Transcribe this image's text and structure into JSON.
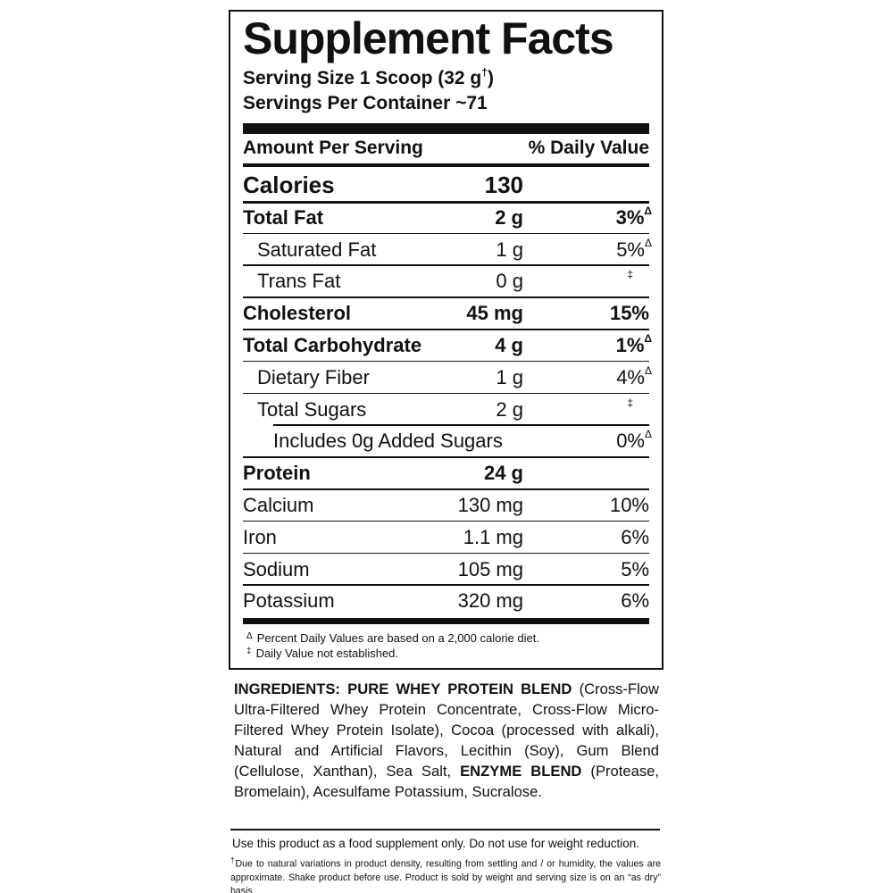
{
  "title": "Supplement Facts",
  "serving_size": {
    "text": "Serving Size 1 Scoop (32 g",
    "mark": "†",
    "end": ")"
  },
  "servings_per_container": "Servings Per Container ~71",
  "header": {
    "amount": "Amount Per Serving",
    "daily_value": "% Daily Value"
  },
  "rows": [
    {
      "name": "Calories",
      "amount": "130",
      "bold": true,
      "indent": 0,
      "large": true
    },
    {
      "name": "Total Fat",
      "amount": "2 g",
      "dv": "3%",
      "dv_mark": "Δ",
      "bold": true,
      "indent": 0
    },
    {
      "name": "Saturated Fat",
      "amount": "1 g",
      "dv": "5%",
      "dv_mark": "Δ",
      "bold": false,
      "indent": 1
    },
    {
      "name": "Trans Fat",
      "amount": "0 g",
      "dv_mark": "‡",
      "bold": false,
      "indent": 1
    },
    {
      "name": "Cholesterol",
      "amount": "45 mg",
      "dv": "15%",
      "bold": true,
      "indent": 0
    },
    {
      "name": "Total Carbohydrate",
      "amount": "4 g",
      "dv": "1%",
      "dv_mark": "Δ",
      "bold": true,
      "indent": 0
    },
    {
      "name": "Dietary Fiber",
      "amount": "1 g",
      "dv": "4%",
      "dv_mark": "Δ",
      "bold": false,
      "indent": 1
    },
    {
      "name": "Total Sugars",
      "amount": "2 g",
      "dv_mark": "‡",
      "bold": false,
      "indent": 1
    },
    {
      "name": "Includes 0g Added Sugars",
      "dv": "0%",
      "dv_mark": "Δ",
      "bold": false,
      "indent": 2
    },
    {
      "name": "Protein",
      "amount": "24 g",
      "bold": true,
      "indent": 0
    },
    {
      "name": "Calcium",
      "amount": "130 mg",
      "dv": "10%",
      "bold": false,
      "indent": 0
    },
    {
      "name": "Iron",
      "amount": "1.1 mg",
      "dv": "6%",
      "bold": false,
      "indent": 0
    },
    {
      "name": "Sodium",
      "amount": "105 mg",
      "dv": "5%",
      "bold": false,
      "indent": 0
    },
    {
      "name": "Potassium",
      "amount": "320 mg",
      "dv": "6%",
      "bold": false,
      "indent": 0
    }
  ],
  "footnotes": [
    {
      "mark": "Δ",
      "text": "Percent Daily Values are based on a 2,000 calorie diet."
    },
    {
      "mark": "‡",
      "text": "Daily Value not established."
    }
  ],
  "ingredients": [
    {
      "text": "INGREDIENTS: PURE WHEY PROTEIN BLEND",
      "bold": true
    },
    {
      "text": " (Cross-Flow Ultra-Filtered Whey Protein Concentrate, Cross-Flow Micro-Filtered Whey Protein Isolate), Cocoa (processed with alkali), Natural and Artificial Flavors, Lecithin (Soy), Gum Blend (Cellulose, Xanthan), Sea Salt, ",
      "bold": false
    },
    {
      "text": "ENZYME BLEND",
      "bold": true
    },
    {
      "text": " (Protease, Bromelain), Acesulfame Potassium, Sucralose.",
      "bold": false
    }
  ],
  "disclaimer": "Use this product as a food supplement only. Do not use for weight reduction.",
  "fine_print": {
    "mark": "†",
    "text": "Due to natural variations in product density, resulting from settling and / or humidity, the values are approximate. Shake product before use. Product is sold by weight and serving size is on an “as dry” basis."
  }
}
